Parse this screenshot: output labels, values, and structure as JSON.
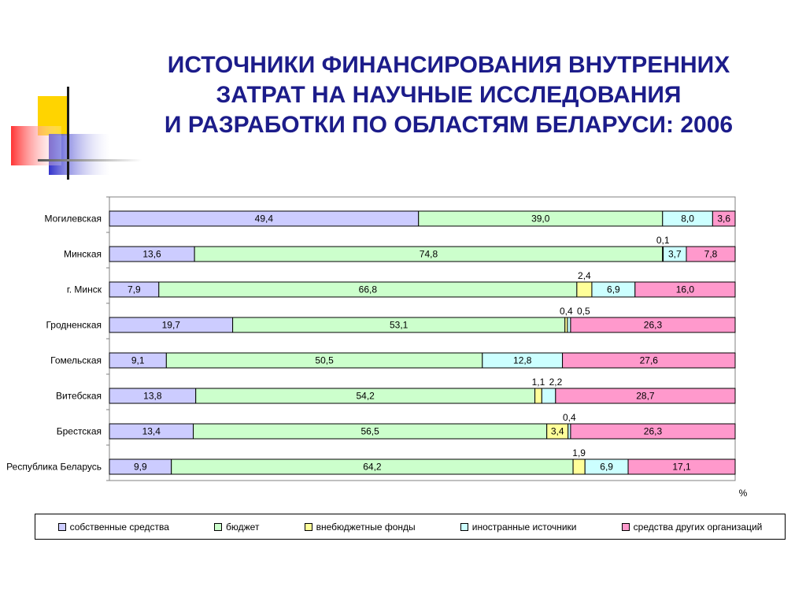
{
  "title_lines": [
    "ИСТОЧНИКИ ФИНАНСИРОВАНИЯ ВНУТРЕННИХ",
    "ЗАТРАТ НА НАУЧНЫЕ ИССЛЕДОВАНИЯ",
    "И РАЗРАБОТКИ ПО ОБЛАСТЯМ БЕЛАРУСИ: 2006"
  ],
  "chart_data": {
    "type": "bar",
    "orientation": "horizontal",
    "stacked": true,
    "percent_axis_label": "%",
    "xlim": [
      0,
      100
    ],
    "categories": [
      "Могилевская",
      "Минская",
      "г. Минск",
      "Гродненская",
      "Гомельская",
      "Витебская",
      "Брестская",
      "Республика Беларусь"
    ],
    "series": [
      {
        "name": "собственные средства",
        "color": "#ccccff",
        "values": [
          49.4,
          13.6,
          7.9,
          19.7,
          9.1,
          13.8,
          13.4,
          9.9
        ],
        "labels": [
          "49,4",
          "13,6",
          "7,9",
          "19,7",
          "9,1",
          "13,8",
          "13,4",
          "9,9"
        ]
      },
      {
        "name": "бюджет",
        "color": "#ccffcc",
        "values": [
          39.0,
          74.8,
          66.8,
          53.1,
          50.5,
          54.2,
          56.5,
          64.2
        ],
        "labels": [
          "39,0",
          "74,8",
          "66,8",
          "53,1",
          "50,5",
          "54,2",
          "56,5",
          "64,2"
        ]
      },
      {
        "name": "внебюджетные фонды",
        "color": "#ffff99",
        "values": [
          0,
          0.1,
          2.4,
          0.4,
          0,
          1.1,
          3.4,
          1.9
        ],
        "labels": [
          "",
          "0,1",
          "2,4",
          "0,4",
          "",
          "1,1",
          "3,4",
          "1,9"
        ]
      },
      {
        "name": "иностранные источники",
        "color": "#ccffff",
        "values": [
          8.0,
          3.7,
          6.9,
          0.5,
          12.8,
          2.2,
          0.4,
          6.9
        ],
        "labels": [
          "8,0",
          "3,7",
          "6,9",
          "0,5",
          "12,8",
          "2,2",
          "0,4",
          "6,9"
        ]
      },
      {
        "name": "средства других организаций",
        "color": "#ff99cc",
        "values": [
          3.6,
          7.8,
          16.0,
          26.3,
          27.6,
          28.7,
          26.3,
          17.1
        ],
        "labels": [
          "3,6",
          "7,8",
          "16,0",
          "26,3",
          "27,6",
          "28,7",
          "26,3",
          "17,1"
        ]
      }
    ]
  }
}
